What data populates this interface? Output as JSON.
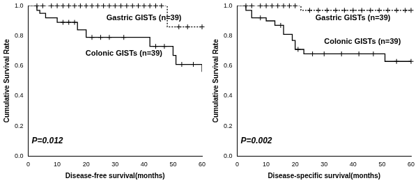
{
  "chart_data": [
    {
      "type": "step",
      "x_label": "Disease-free survival(months)",
      "y_label": "Cumulative Survival Rate",
      "annotation": "P=0.012",
      "xlim": [
        0,
        60
      ],
      "xticks": [
        0,
        10,
        20,
        30,
        40,
        50,
        60
      ],
      "ylim": [
        0,
        1.0
      ],
      "yticks": [
        {
          "value": 0,
          "label": "0.0"
        },
        {
          "value": 0.2,
          "label": "0.2"
        },
        {
          "value": 0.4,
          "label": "0.4"
        },
        {
          "value": 0.6,
          "label": "0.6"
        },
        {
          "value": 0.8,
          "label": "0.8"
        },
        {
          "value": 1.0,
          "label": "1.0"
        }
      ],
      "grid": false,
      "series": [
        {
          "name": "Gastric GISTs (n=39)",
          "color": "#000000",
          "line_style": "dotted",
          "marker": "cross",
          "x": [
            0,
            48,
            60
          ],
          "values": [
            1.0,
            0.86,
            0.86
          ],
          "censored": {
            "x": [
              3,
              5,
              8,
              10,
              12,
              14,
              16,
              18,
              20,
              22,
              24,
              26,
              28,
              30,
              32,
              34,
              36,
              38,
              40,
              42,
              44,
              46,
              52,
              55,
              60
            ],
            "values": [
              1.0,
              1.0,
              1.0,
              1.0,
              1.0,
              1.0,
              1.0,
              1.0,
              1.0,
              1.0,
              1.0,
              1.0,
              1.0,
              1.0,
              1.0,
              1.0,
              1.0,
              1.0,
              1.0,
              1.0,
              1.0,
              1.0,
              0.86,
              0.86,
              0.86
            ]
          }
        },
        {
          "name": "Colonic GISTs (n=39)",
          "color": "#000000",
          "line_style": "solid",
          "marker": "cross",
          "x": [
            0,
            3,
            4,
            6,
            10,
            17,
            20,
            42,
            50,
            51,
            60
          ],
          "values": [
            1.0,
            0.97,
            0.95,
            0.92,
            0.89,
            0.84,
            0.79,
            0.73,
            0.67,
            0.61,
            0.56
          ],
          "censored": {
            "x": [
              12,
              14,
              16,
              22,
              25,
              28,
              33,
              44,
              47,
              53,
              57
            ],
            "values": [
              0.89,
              0.89,
              0.89,
              0.79,
              0.79,
              0.79,
              0.79,
              0.73,
              0.73,
              0.61,
              0.61
            ]
          }
        }
      ]
    },
    {
      "type": "step",
      "x_label": "Disease-specific survival(months)",
      "y_label": "Cumulative Survival Rate",
      "annotation": "P=0.002",
      "xlim": [
        0,
        60
      ],
      "xticks": [
        0,
        10,
        20,
        30,
        40,
        50,
        60
      ],
      "ylim": [
        0,
        1.0
      ],
      "yticks": [
        {
          "value": 0,
          "label": "0.0"
        },
        {
          "value": 0.2,
          "label": "0.2"
        },
        {
          "value": 0.4,
          "label": "0.4"
        },
        {
          "value": 0.6,
          "label": "0.6"
        },
        {
          "value": 0.8,
          "label": "0.8"
        },
        {
          "value": 1.0,
          "label": "1.0"
        }
      ],
      "grid": false,
      "series": [
        {
          "name": "Gastric GISTs (n=39)",
          "color": "#000000",
          "line_style": "dotted",
          "marker": "cross",
          "x": [
            0,
            22,
            60
          ],
          "values": [
            1.0,
            0.97,
            0.97
          ],
          "censored": {
            "x": [
              3,
              5,
              8,
              10,
              12,
              14,
              16,
              18,
              20,
              25,
              28,
              31,
              34,
              37,
              40,
              43,
              46,
              49,
              52,
              55,
              58,
              60
            ],
            "values": [
              1.0,
              1.0,
              1.0,
              1.0,
              1.0,
              1.0,
              1.0,
              1.0,
              1.0,
              0.97,
              0.97,
              0.97,
              0.97,
              0.97,
              0.97,
              0.97,
              0.97,
              0.97,
              0.97,
              0.97,
              0.97,
              0.97
            ]
          }
        },
        {
          "name": "Colonic GISTs (n=39)",
          "color": "#000000",
          "line_style": "solid",
          "marker": "cross",
          "x": [
            0,
            3,
            5,
            10,
            13,
            16,
            19,
            20,
            23,
            51,
            60
          ],
          "values": [
            1.0,
            0.97,
            0.92,
            0.9,
            0.87,
            0.81,
            0.77,
            0.71,
            0.68,
            0.63,
            0.63
          ],
          "censored": {
            "x": [
              8,
              15,
              21,
              26,
              30,
              36,
              42,
              47,
              55,
              60
            ],
            "values": [
              0.92,
              0.87,
              0.71,
              0.68,
              0.68,
              0.68,
              0.68,
              0.68,
              0.63,
              0.63
            ]
          }
        }
      ]
    }
  ]
}
